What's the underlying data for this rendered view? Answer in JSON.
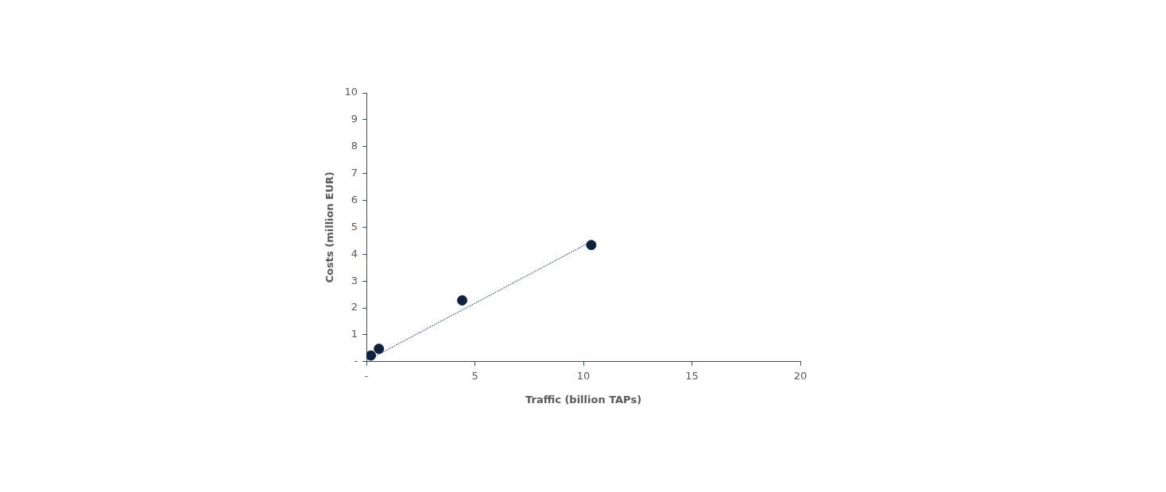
{
  "chart_data": {
    "type": "scatter",
    "xlabel": "Traffic (billion TAPs)",
    "ylabel": "Costs (million EUR)",
    "xlim": [
      0,
      20
    ],
    "xticks": [
      {
        "value": 0,
        "label": "-"
      },
      5,
      10,
      15,
      20
    ],
    "ylim": [
      0,
      10
    ],
    "yticks": [
      {
        "value": 0,
        "label": "-"
      },
      1,
      2,
      3,
      4,
      5,
      6,
      7,
      8,
      9,
      10
    ],
    "grid": false,
    "legend": false,
    "marker": "circle",
    "series": [
      {
        "color": "#0d2240",
        "x": [
          0.2,
          0.57,
          4.41,
          10.36
        ],
        "values": [
          0.23,
          0.48,
          2.28,
          4.34
        ]
      },
      {
        "type": "line",
        "color": "#2f4b7c",
        "line_style": "dotted",
        "marker": "none",
        "x": [
          0.2,
          10.36
        ],
        "values": [
          0.12,
          4.47
        ]
      }
    ]
  }
}
